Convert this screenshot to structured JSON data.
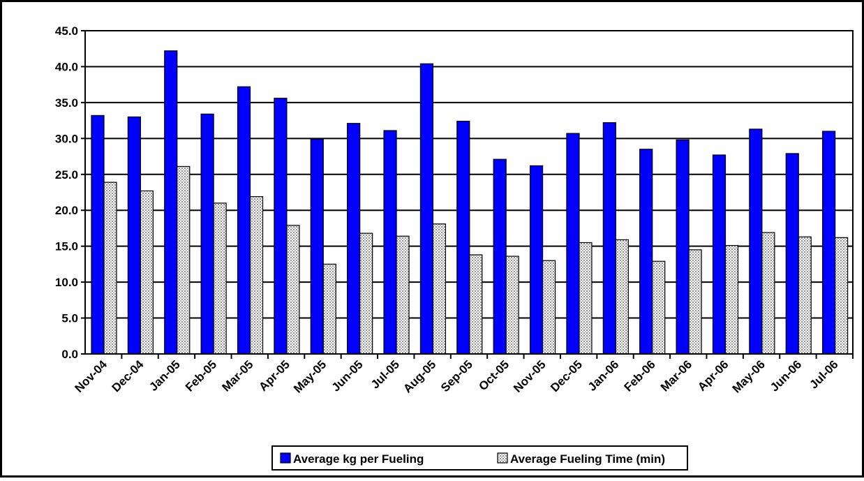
{
  "chart_data": {
    "type": "bar",
    "categories": [
      "Nov-04",
      "Dec-04",
      "Jan-05",
      "Feb-05",
      "Mar-05",
      "Apr-05",
      "May-05",
      "Jun-05",
      "Jul-05",
      "Aug-05",
      "Sep-05",
      "Oct-05",
      "Nov-05",
      "Dec-05",
      "Jan-06",
      "Feb-06",
      "Mar-06",
      "Apr-06",
      "May-06",
      "Jun-06",
      "Jul-06"
    ],
    "series": [
      {
        "name": "Average kg per Fueling",
        "color": "#0000ff",
        "values": [
          33.2,
          33.0,
          42.2,
          33.4,
          37.2,
          35.6,
          29.9,
          32.1,
          31.1,
          40.4,
          32.4,
          27.1,
          26.2,
          30.7,
          32.2,
          28.5,
          29.8,
          27.7,
          31.3,
          27.9,
          31.0
        ]
      },
      {
        "name": "Average Fueling Time (min)",
        "color": "#d0d0d0",
        "values": [
          23.9,
          22.7,
          26.1,
          21.0,
          21.9,
          17.9,
          12.5,
          16.8,
          16.4,
          18.1,
          13.8,
          13.6,
          13.0,
          15.5,
          15.9,
          12.9,
          14.5,
          15.1,
          16.9,
          16.3,
          16.2
        ]
      }
    ],
    "ylim": [
      0,
      45
    ],
    "yticks": [
      {
        "value": 0,
        "label": "0.0"
      },
      {
        "value": 5,
        "label": "5.0"
      },
      {
        "value": 10,
        "label": "10.0"
      },
      {
        "value": 15,
        "label": "15.0"
      },
      {
        "value": 20,
        "label": "20.0"
      },
      {
        "value": 25,
        "label": "25.0"
      },
      {
        "value": 30,
        "label": "30.0"
      },
      {
        "value": 35,
        "label": "35.0"
      },
      {
        "value": 40,
        "label": "40.0"
      },
      {
        "value": 45,
        "label": "45.0"
      }
    ],
    "grid": true,
    "legend": "bottom"
  }
}
